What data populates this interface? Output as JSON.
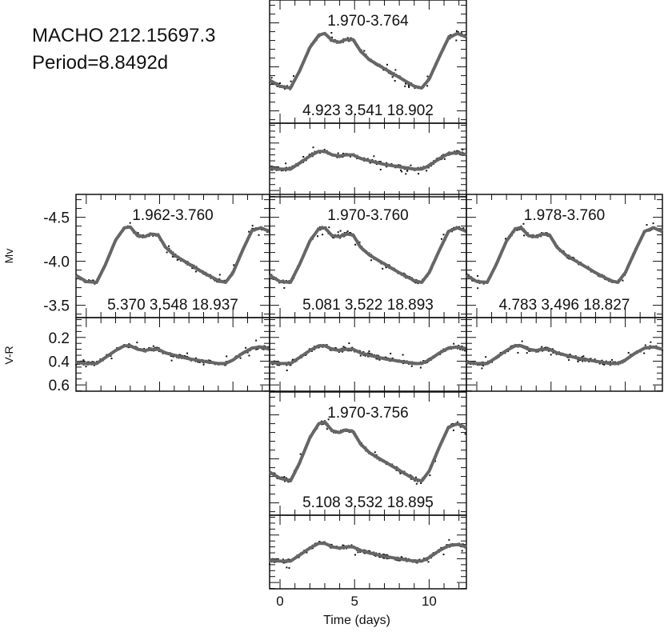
{
  "chart_data": {
    "type": "line",
    "title": "MACHO 212.15697.3",
    "subtitle": "Period=8.8492d",
    "xlabel": "Time (days)",
    "ylabel_top": "Mv",
    "ylabel_bottom": "V-R",
    "xlim": [
      -0.7,
      12.5
    ],
    "x_ticks": [
      "0",
      "5",
      "10"
    ],
    "x_tick_values": [
      0,
      5,
      10
    ],
    "mv_lim": [
      -4.76,
      -3.36
    ],
    "mv_ticks": [
      "-4.5",
      "-4.0",
      "-3.5"
    ],
    "mv_tick_values": [
      -4.5,
      -4.0,
      -3.5
    ],
    "vr_lim": [
      0.033,
      0.653
    ],
    "vr_ticks": [
      "0.6",
      "0.4",
      "0.2"
    ],
    "vr_tick_values": [
      0.6,
      0.4,
      0.2
    ],
    "model_x": [
      -0.7,
      0.0,
      0.7,
      1.3,
      2.0,
      2.6,
      3.0,
      3.5,
      4.0,
      4.4,
      4.9,
      5.4,
      6.0,
      7.0,
      8.0,
      9.0,
      9.5,
      10.0,
      10.7,
      11.3,
      11.9,
      12.5
    ],
    "panels": [
      {
        "position": "top",
        "label": "1.970-3.764",
        "params": "4.923 3.541 18.902",
        "mv": [
          -3.85,
          -3.78,
          -3.76,
          -3.95,
          -4.22,
          -4.36,
          -4.38,
          -4.3,
          -4.28,
          -4.31,
          -4.31,
          -4.18,
          -4.08,
          -3.98,
          -3.88,
          -3.78,
          -3.76,
          -3.86,
          -4.12,
          -4.33,
          -4.38,
          -4.34
        ],
        "vr": [
          0.41,
          0.42,
          0.42,
          0.37,
          0.31,
          0.27,
          0.27,
          0.3,
          0.31,
          0.3,
          0.3,
          0.33,
          0.35,
          0.38,
          0.4,
          0.42,
          0.42,
          0.39,
          0.33,
          0.29,
          0.28,
          0.3
        ]
      },
      {
        "position": "left",
        "label": "1.962-3.760",
        "params": "5.370 3.548 18.937",
        "mv": [
          -3.84,
          -3.77,
          -3.76,
          -3.96,
          -4.24,
          -4.38,
          -4.39,
          -4.29,
          -4.28,
          -4.31,
          -4.3,
          -4.16,
          -4.07,
          -3.97,
          -3.87,
          -3.78,
          -3.76,
          -3.87,
          -4.14,
          -4.35,
          -4.38,
          -4.34
        ],
        "vr": [
          0.41,
          0.42,
          0.42,
          0.37,
          0.31,
          0.27,
          0.27,
          0.3,
          0.31,
          0.3,
          0.3,
          0.33,
          0.35,
          0.38,
          0.4,
          0.42,
          0.42,
          0.39,
          0.33,
          0.29,
          0.28,
          0.3
        ]
      },
      {
        "position": "center",
        "label": "1.970-3.760",
        "params": "5.081 3.522 18.893",
        "mv": [
          -3.84,
          -3.77,
          -3.76,
          -3.96,
          -4.23,
          -4.37,
          -4.38,
          -4.29,
          -4.28,
          -4.31,
          -4.3,
          -4.16,
          -4.07,
          -3.97,
          -3.87,
          -3.78,
          -3.76,
          -3.87,
          -4.13,
          -4.34,
          -4.38,
          -4.34
        ],
        "vr": [
          0.41,
          0.42,
          0.42,
          0.37,
          0.31,
          0.27,
          0.27,
          0.3,
          0.31,
          0.3,
          0.3,
          0.33,
          0.35,
          0.38,
          0.4,
          0.42,
          0.42,
          0.39,
          0.33,
          0.29,
          0.28,
          0.3
        ]
      },
      {
        "position": "right",
        "label": "1.978-3.760",
        "params": "4.783 3.496 18.827",
        "mv": [
          -3.84,
          -3.77,
          -3.76,
          -3.96,
          -4.23,
          -4.37,
          -4.38,
          -4.29,
          -4.28,
          -4.31,
          -4.3,
          -4.16,
          -4.07,
          -3.97,
          -3.87,
          -3.78,
          -3.76,
          -3.87,
          -4.13,
          -4.34,
          -4.38,
          -4.34
        ],
        "vr": [
          0.41,
          0.42,
          0.42,
          0.37,
          0.31,
          0.27,
          0.27,
          0.3,
          0.31,
          0.3,
          0.3,
          0.33,
          0.35,
          0.38,
          0.4,
          0.42,
          0.42,
          0.39,
          0.33,
          0.29,
          0.28,
          0.3
        ]
      },
      {
        "position": "bottom",
        "label": "1.970-3.756",
        "params": "5.108 3.532 18.895",
        "mv": [
          -3.85,
          -3.78,
          -3.75,
          -3.95,
          -4.24,
          -4.4,
          -4.42,
          -4.32,
          -4.3,
          -4.33,
          -4.31,
          -4.17,
          -4.07,
          -3.97,
          -3.87,
          -3.77,
          -3.75,
          -3.86,
          -4.14,
          -4.36,
          -4.4,
          -4.35
        ],
        "vr": [
          0.41,
          0.42,
          0.42,
          0.37,
          0.31,
          0.27,
          0.27,
          0.3,
          0.31,
          0.3,
          0.3,
          0.33,
          0.35,
          0.38,
          0.4,
          0.42,
          0.42,
          0.39,
          0.33,
          0.29,
          0.28,
          0.3
        ]
      }
    ]
  }
}
